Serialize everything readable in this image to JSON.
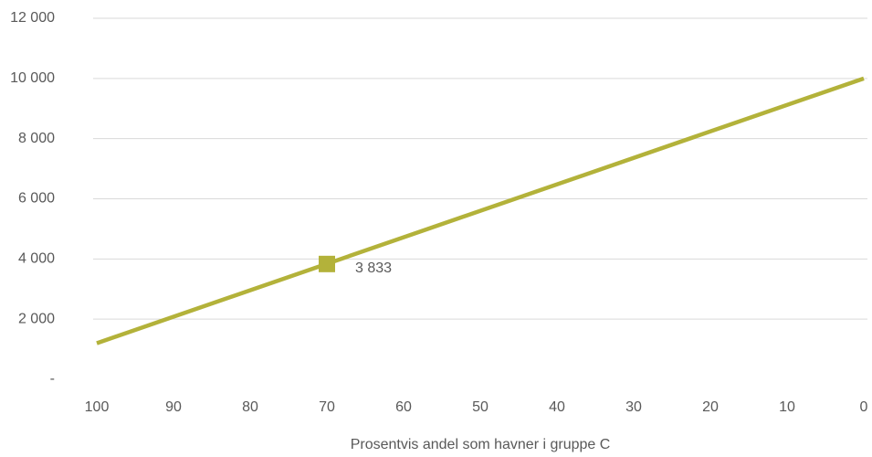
{
  "chart_data": {
    "type": "line",
    "x_label": "Prosentvis andel som havner i gruppe C",
    "x": [
      100,
      0
    ],
    "series": [
      {
        "color": "#b3b23a",
        "values": [
          1200,
          10000
        ]
      }
    ],
    "highlight": {
      "x": 70,
      "value": 3833,
      "value_label": "3 833",
      "color": "#b3b23a"
    },
    "xlim": [
      100,
      0
    ],
    "xticks": [
      100,
      90,
      80,
      70,
      60,
      50,
      40,
      30,
      20,
      10,
      0
    ],
    "ylim": [
      0,
      12000
    ],
    "yticks": [
      {
        "value": 0,
        "label": "-"
      },
      {
        "value": 2000,
        "label": "2 000"
      },
      {
        "value": 4000,
        "label": "4 000"
      },
      {
        "value": 6000,
        "label": "6 000"
      },
      {
        "value": 8000,
        "label": "8 000"
      },
      {
        "value": 10000,
        "label": "10 000"
      },
      {
        "value": 12000,
        "label": "12 000"
      }
    ],
    "grid": true
  }
}
